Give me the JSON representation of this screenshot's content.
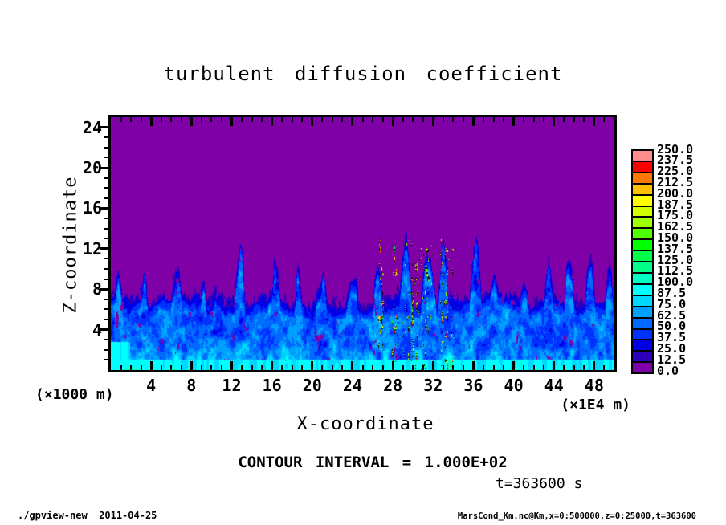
{
  "title": "turbulent diffusion coefficient",
  "axes": {
    "x": {
      "label": "X-coordinate",
      "unit": "(×1E4 m)",
      "range": [
        0,
        50
      ],
      "major_ticks": [
        4,
        8,
        12,
        16,
        20,
        24,
        28,
        32,
        36,
        40,
        44,
        48
      ],
      "minor_tick_step": 1
    },
    "y": {
      "label": "Z-coordinate",
      "unit": "(×1000 m)",
      "range": [
        0,
        25
      ],
      "major_ticks": [
        4,
        8,
        12,
        16,
        20,
        24
      ],
      "minor_tick_step": 1
    }
  },
  "colorbar": {
    "labels_top_to_bottom": [
      "250.0",
      "237.5",
      "225.0",
      "212.5",
      "200.0",
      "187.5",
      "175.0",
      "162.5",
      "150.0",
      "137.5",
      "125.0",
      "112.5",
      "100.0",
      "87.5",
      "75.0",
      "62.5",
      "50.0",
      "37.5",
      "25.0",
      "12.5",
      "0.0"
    ],
    "colors_low_to_high": [
      "#8000a8",
      "#2d00b9",
      "#0000e6",
      "#0032ff",
      "#0069ff",
      "#00a0ff",
      "#00d7ff",
      "#00ffff",
      "#00ffc3",
      "#00ff87",
      "#00ff4b",
      "#00ff00",
      "#50ff00",
      "#a0ff00",
      "#d2ff00",
      "#ffff00",
      "#ffbe00",
      "#ff7800",
      "#ff0000",
      "#ff8c8c"
    ]
  },
  "annotations": {
    "contour_interval": "CONTOUR INTERVAL = 1.000E+02",
    "time": "t=363600 s"
  },
  "footer": {
    "left": "./gpview-new  2011-04-25",
    "right": "MarsCond_Km.nc@Km,x=0:500000,z=0:25000,t=363600"
  },
  "chart_data": {
    "type": "heatmap",
    "title": "turbulent diffusion coefficient",
    "xlabel": "X-coordinate",
    "x_unit": "(×1E4 m)",
    "x_range": [
      0,
      50
    ],
    "zlabel": "Z-coordinate",
    "z_unit": "(×1000 m)",
    "z_range": [
      0,
      25
    ],
    "value_levels": {
      "min": 0,
      "max": 250,
      "step": 12.5
    },
    "contour_interval": 100,
    "time_s": 363600,
    "field_summary": "Uniform purple field (lowest band 0.0–12.5) fills the region above the turbulent boundary layer; below z≈8 (×1000 m) a ragged layer of blue–cyan eddies and wispy filaments (values ≈12.5–100) with bright cyan patches near the surface; narrow plumes reach z≈12–13; a dense cluster of high-value speckles (≈100–250, green/yellow mixed with packed black contour lines) occurs near x≈27–34 (×1E4 m).",
    "render_params": {
      "base_layer_height": 7.0,
      "plumes": [
        [
          0.5,
          9.5,
          0.9
        ],
        [
          3.2,
          8.8,
          0.7
        ],
        [
          6.5,
          9.3,
          0.8
        ],
        [
          9.0,
          8.6,
          0.6
        ],
        [
          12.8,
          12.2,
          0.5
        ],
        [
          16.2,
          10.5,
          0.7
        ],
        [
          18.5,
          9.0,
          0.6
        ],
        [
          21.0,
          9.3,
          0.8
        ],
        [
          24.0,
          9.6,
          0.7
        ],
        [
          26.5,
          10.5,
          0.5
        ],
        [
          29.3,
          12.8,
          0.6
        ],
        [
          31.5,
          13.0,
          0.7
        ],
        [
          33.0,
          12.0,
          0.5
        ],
        [
          36.2,
          11.5,
          0.6
        ],
        [
          38.0,
          9.0,
          0.6
        ],
        [
          41.0,
          9.2,
          0.7
        ],
        [
          43.5,
          9.8,
          0.6
        ],
        [
          45.5,
          11.0,
          0.5
        ],
        [
          47.5,
          10.2,
          0.6
        ],
        [
          49.5,
          9.5,
          0.5
        ]
      ],
      "hot_region": {
        "x_min": 26.5,
        "x_max": 34.0,
        "z_max": 13.0
      }
    }
  }
}
